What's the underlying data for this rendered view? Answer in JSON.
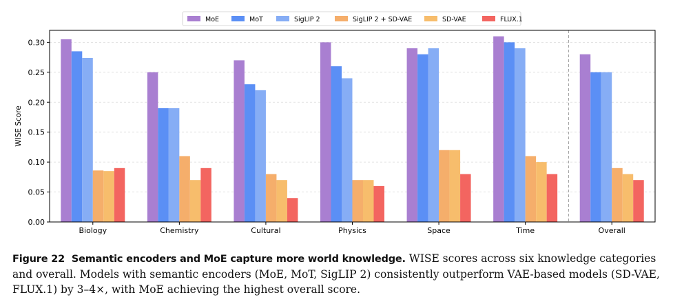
{
  "chart_data": {
    "type": "bar",
    "title": "",
    "xlabel": "",
    "ylabel": "WISE Score",
    "ylim": [
      0,
      0.32
    ],
    "yticks": [
      "0.00",
      "0.05",
      "0.10",
      "0.15",
      "0.20",
      "0.25",
      "0.30"
    ],
    "ytick_values": [
      0,
      0.05,
      0.1,
      0.15,
      0.2,
      0.25,
      0.3
    ],
    "categories": [
      "Biology",
      "Chemistry",
      "Cultural",
      "Physics",
      "Space",
      "Time",
      "Overall"
    ],
    "legend_position": "top-center",
    "grid": "horizontal dashed",
    "separator_before": "Overall",
    "series": [
      {
        "name": "MoE",
        "color": "#a97fd1",
        "values": [
          0.305,
          0.25,
          0.27,
          0.3,
          0.29,
          0.31,
          0.28
        ]
      },
      {
        "name": "MoT",
        "color": "#5b8ff5",
        "values": [
          0.285,
          0.19,
          0.23,
          0.26,
          0.28,
          0.3,
          0.25
        ]
      },
      {
        "name": "SigLIP 2",
        "color": "#86adf5",
        "values": [
          0.274,
          0.19,
          0.22,
          0.24,
          0.29,
          0.29,
          0.25
        ]
      },
      {
        "name": "SigLIP 2 + SD-VAE",
        "color": "#f5ae6b",
        "values": [
          0.086,
          0.11,
          0.08,
          0.07,
          0.12,
          0.11,
          0.09
        ]
      },
      {
        "name": "SD-VAE",
        "color": "#f7bd6c",
        "values": [
          0.085,
          0.07,
          0.07,
          0.07,
          0.12,
          0.1,
          0.08
        ]
      },
      {
        "name": "FLUX.1",
        "color": "#f36560",
        "values": [
          0.09,
          0.09,
          0.04,
          0.06,
          0.08,
          0.08,
          0.07
        ]
      }
    ]
  },
  "caption": {
    "label": "Figure 22",
    "title": "Semantic encoders and MoE capture more world knowledge.",
    "text": "WISE scores across six knowledge categories and overall. Models with semantic encoders (MoE, MoT, SigLIP 2) consistently outperform VAE-based models (SD-VAE, FLUX.1) by 3–4×, with MoE achieving the highest overall score."
  }
}
